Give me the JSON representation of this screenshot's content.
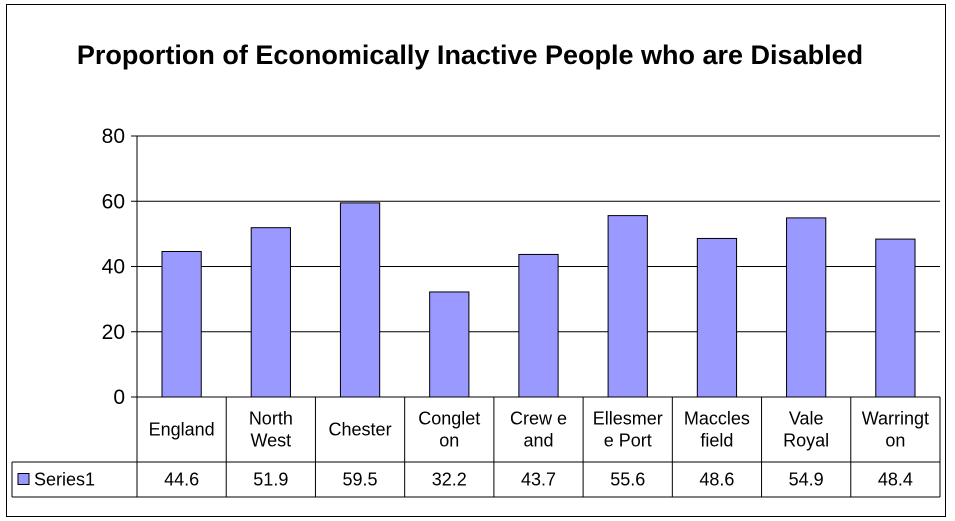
{
  "chart_data": {
    "type": "bar",
    "title": "Proportion of Economically Inactive People who are Disabled",
    "categories": [
      [
        "England"
      ],
      [
        "North",
        "West"
      ],
      [
        "Chester"
      ],
      [
        "Conglet",
        "on"
      ],
      [
        "Crew e",
        "and"
      ],
      [
        "Ellesmer",
        "e Port"
      ],
      [
        "Maccles",
        "field"
      ],
      [
        "Vale",
        "Royal"
      ],
      [
        "Warringt",
        "on"
      ]
    ],
    "series": [
      {
        "name": "Series1",
        "values": [
          44.6,
          51.9,
          59.5,
          32.2,
          43.7,
          55.6,
          48.6,
          54.9,
          48.4
        ],
        "labels": [
          "44.6",
          "51.9",
          "59.5",
          "32.2",
          "43.7",
          "55.6",
          "48.6",
          "54.9",
          "48.4"
        ]
      }
    ],
    "ylim": [
      0,
      80
    ],
    "yticks": [
      "0",
      "20",
      "40",
      "60",
      "80"
    ],
    "grid": true,
    "legend": "data-table",
    "colors": {
      "bar": "#9999ff",
      "stroke": "#000000",
      "grid": "#000000"
    }
  }
}
